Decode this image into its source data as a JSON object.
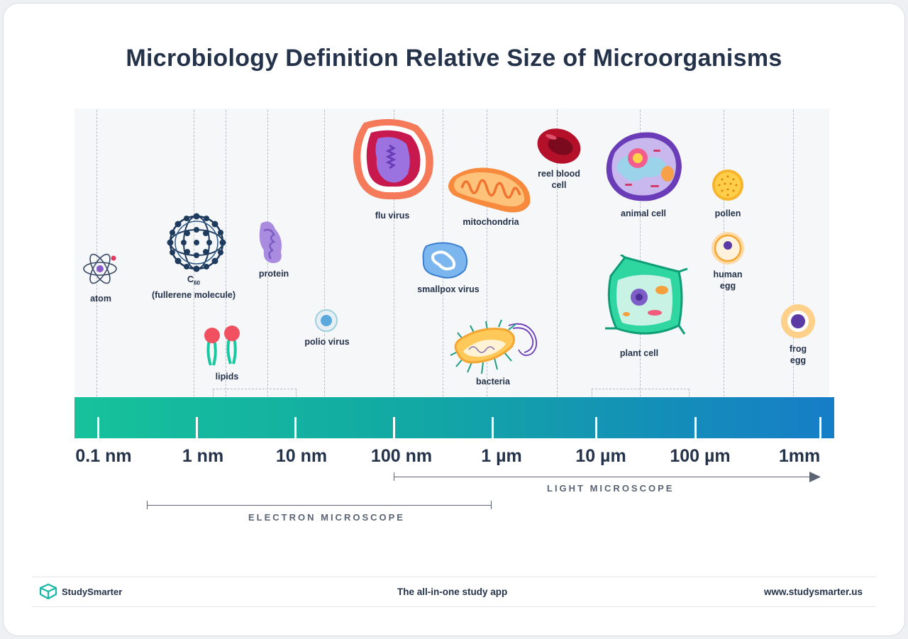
{
  "title": "Microbiology Definition Relative Size of Microorganisms",
  "organisms": {
    "atom": "atom",
    "c60_c": "C",
    "c60_sub": "60",
    "c60_name": "(fullerene molecule)",
    "lipids": "lipids",
    "protein": "protein",
    "polio": "polio virus",
    "flu": "flu virus",
    "smallpox": "smallpox virus",
    "mitochondria": "mitochondria",
    "bacteria": "bacteria",
    "rbc_line1": "reel blood",
    "rbc_line2": "cell",
    "animal": "animal cell",
    "plant": "plant cell",
    "pollen": "pollen",
    "human_egg_line1": "human",
    "human_egg_line2": "egg",
    "frog_egg_line1": "frog",
    "frog_egg_line2": "egg"
  },
  "scale": [
    "0.1 nm",
    "1 nm",
    "10 nm",
    "100 nm",
    "1 µm",
    "10 µm",
    "100 µm",
    "1mm"
  ],
  "microscopes": {
    "light": "LIGHT MICROSCOPE",
    "electron": "ELECTRON MICROSCOPE"
  },
  "footer": {
    "brand": "StudySmarter",
    "tagline": "The all-in-one study app",
    "url": "www.studysmarter.us"
  },
  "colors": {
    "bar_start": "#16c29b",
    "bar_end": "#167dc7",
    "title": "#24324a"
  }
}
